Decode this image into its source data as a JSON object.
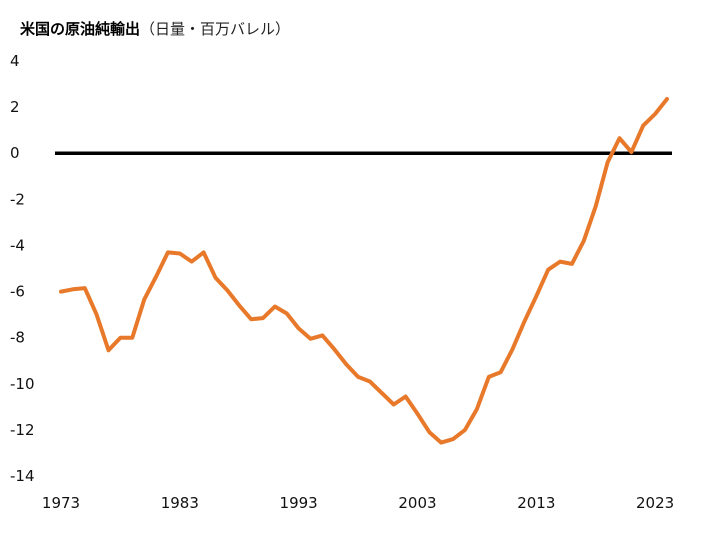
{
  "title": {
    "main": "米国の原油純輸出",
    "unit": "（日量・百万バレル）"
  },
  "colors": {
    "series": "#E8792B",
    "zero_line": "#000000"
  },
  "chart_data": {
    "type": "line",
    "title": "米国の原油純輸出（日量・百万バレル）",
    "xlabel": "",
    "ylabel": "",
    "xlim": [
      1973,
      2024
    ],
    "ylim": [
      -14,
      4
    ],
    "x_ticks": [
      1973,
      1983,
      1993,
      2003,
      2013,
      2023
    ],
    "y_ticks": [
      4,
      2,
      0,
      -2,
      -4,
      -6,
      -8,
      -10,
      -12,
      -14
    ],
    "grid": false,
    "legend": "none",
    "reference_line": {
      "y": 0
    },
    "series": [
      {
        "x": [
          1973,
          1974,
          1975,
          1976,
          1977,
          1978,
          1979,
          1980,
          1981,
          1982,
          1983,
          1984,
          1985,
          1986,
          1987,
          1988,
          1989,
          1990,
          1991,
          1992,
          1993,
          1994,
          1995,
          1996,
          1997,
          1998,
          1999,
          2000,
          2001,
          2002,
          2003,
          2004,
          2005,
          2006,
          2007,
          2008,
          2009,
          2010,
          2011,
          2012,
          2013,
          2014,
          2015,
          2016,
          2017,
          2018,
          2019,
          2020,
          2021,
          2022,
          2023,
          2024
        ],
        "values": [
          -6.0,
          -5.9,
          -5.85,
          -7.0,
          -8.55,
          -8.0,
          -8.0,
          -6.35,
          -5.35,
          -4.3,
          -4.35,
          -4.7,
          -4.3,
          -5.4,
          -5.95,
          -6.6,
          -7.2,
          -7.15,
          -6.65,
          -6.95,
          -7.6,
          -8.05,
          -7.9,
          -8.5,
          -9.15,
          -9.7,
          -9.9,
          -10.4,
          -10.9,
          -10.55,
          -11.3,
          -12.1,
          -12.55,
          -12.4,
          -12.0,
          -11.1,
          -9.7,
          -9.5,
          -8.5,
          -7.3,
          -6.2,
          -5.05,
          -4.7,
          -4.8,
          -3.8,
          -2.3,
          -0.4,
          0.65,
          0.05,
          1.2,
          1.7,
          2.35
        ]
      }
    ]
  }
}
